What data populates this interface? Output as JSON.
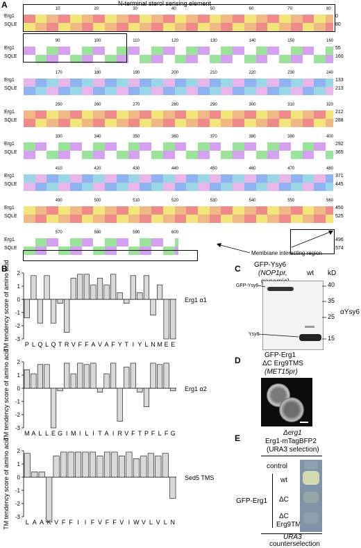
{
  "panelA": {
    "letter": "A",
    "title": "N-terminal sterol sensing element",
    "row_labels": [
      "Erg1",
      "SQLE"
    ],
    "blocks": [
      {
        "ruler": [
          "10",
          "20",
          "30",
          "40",
          "50",
          "60",
          "70",
          "80"
        ],
        "nums": [
          "0",
          "80"
        ]
      },
      {
        "ruler": [
          "90",
          "100",
          "110",
          "120",
          "130",
          "140",
          "150",
          "160"
        ],
        "nums": [
          "55",
          "160"
        ]
      },
      {
        "ruler": [
          "170",
          "180",
          "190",
          "200",
          "210",
          "220",
          "230",
          "240"
        ],
        "nums": [
          "133",
          "213"
        ]
      },
      {
        "ruler": [
          "250",
          "260",
          "270",
          "280",
          "290",
          "300",
          "310",
          "320"
        ],
        "nums": [
          "212",
          "288"
        ]
      },
      {
        "ruler": [
          "330",
          "340",
          "350",
          "360",
          "370",
          "380",
          "390",
          "400"
        ],
        "nums": [
          "292",
          "365"
        ]
      },
      {
        "ruler": [
          "410",
          "420",
          "430",
          "440",
          "450",
          "460",
          "470",
          "480"
        ],
        "nums": [
          "371",
          "445"
        ]
      },
      {
        "ruler": [
          "490",
          "500",
          "510",
          "520",
          "530",
          "540",
          "550",
          "560"
        ],
        "nums": [
          "450",
          "525"
        ]
      },
      {
        "ruler": [
          "570",
          "580",
          "590",
          "600"
        ],
        "nums": [
          "496",
          "574"
        ]
      }
    ],
    "membrane_label": "Membrane interacting region"
  },
  "panelB": {
    "letter": "B",
    "ylabel": "TM tendency score of amino acid",
    "charts": [
      {
        "name": "Erg1 α1",
        "letters": [
          "P",
          "L",
          "Q",
          "L",
          "Q",
          "T",
          "R",
          "V",
          "F",
          "F",
          "A",
          "V",
          "A",
          "F",
          "Y",
          "T",
          "I",
          "Y",
          "L",
          "N",
          "M",
          "E",
          "E"
        ],
        "values": [
          -1.4,
          1.8,
          -1.8,
          1.8,
          -1.8,
          -0.3,
          -2.5,
          1.6,
          1.9,
          1.9,
          1.1,
          1.6,
          1.1,
          1.9,
          0.5,
          -0.3,
          1.8,
          0.5,
          1.8,
          -1.2,
          1.1,
          -3.0,
          -3.0
        ]
      },
      {
        "name": "Erg1 α2",
        "letters": [
          "M",
          "A",
          "L",
          "L",
          "E",
          "G",
          "I",
          "M",
          "I",
          "L",
          "I",
          "T",
          "A",
          "I",
          "R",
          "V",
          "F",
          "T",
          "P",
          "F",
          "L",
          "F",
          "G"
        ],
        "values": [
          1.4,
          1.1,
          1.8,
          1.8,
          -3.0,
          -0.2,
          1.9,
          1.1,
          1.9,
          1.8,
          1.9,
          -0.3,
          1.1,
          1.9,
          -2.5,
          1.6,
          1.9,
          -0.3,
          -1.4,
          1.9,
          1.8,
          1.9,
          -0.2
        ]
      },
      {
        "name": "Sed5 TMS",
        "letters": [
          "L",
          "A",
          "A",
          "K",
          "V",
          "F",
          "F",
          "I",
          "I",
          "F",
          "V",
          "F",
          "F",
          "V",
          "I",
          "W",
          "V",
          "L",
          "V",
          "L",
          "N"
        ],
        "values": [
          1.8,
          0.4,
          0.4,
          -3.4,
          1.6,
          1.9,
          1.9,
          1.9,
          1.9,
          1.9,
          1.6,
          1.9,
          1.9,
          1.6,
          1.9,
          1.4,
          1.6,
          1.8,
          1.6,
          1.8,
          -1.6
        ]
      }
    ],
    "yticks": [
      "2",
      "1",
      "0",
      "-1",
      "-2",
      "-3"
    ]
  },
  "panelC": {
    "letter": "C",
    "lane1": "GFP-Ysy6",
    "lane1_sub": "(NOP1pr,",
    "lane1_sub2": "genomic)",
    "lane2": "wt",
    "kd": "kD",
    "markers": [
      "40",
      "35",
      "25",
      "15"
    ],
    "band_left_top": "GFP-Ysy6",
    "band_left_bottom": "Ysy6",
    "antibody": "αYsy6"
  },
  "panelD": {
    "letter": "D",
    "line1": "GFP-Erg1",
    "line2": "ΔC Erg9TMS",
    "line3": "(MET15pr)"
  },
  "panelE": {
    "letter": "E",
    "line1": "Δerg1",
    "line2": "Erg1-mTagBFP2",
    "line3": "(URA3 selection)",
    "rows": [
      "control",
      "wt",
      "ΔC",
      "ΔC",
      "Erg9TM"
    ],
    "group_label": "GFP-Erg1",
    "bottom1": "URA3",
    "bottom2": "counterselection"
  },
  "colors": {
    "bar": "#d9d9d9"
  }
}
